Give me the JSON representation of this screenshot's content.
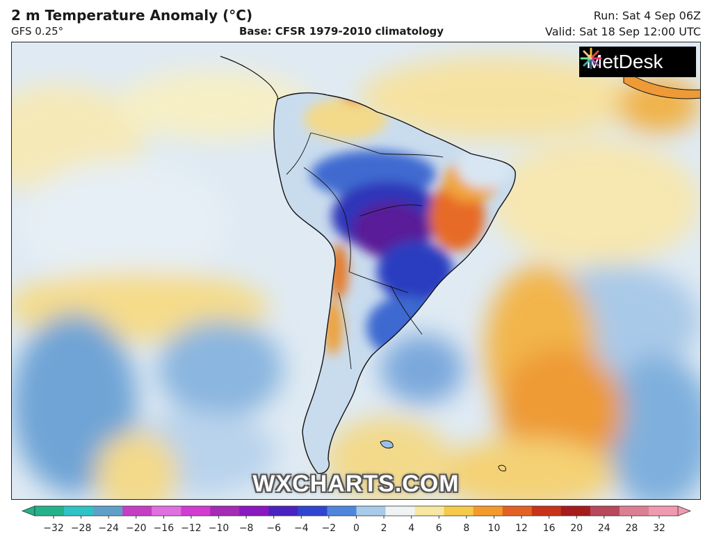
{
  "header": {
    "title": "2 m Temperature Anomaly (°C)",
    "model": "GFS 0.25°",
    "base": "Base: CFSR 1979-2010 climatology",
    "run": "Run: Sat 4 Sep 06Z",
    "valid": "Valid: Sat 18 Sep 12:00 UTC"
  },
  "logo": {
    "text": "MetDesk",
    "icon": "metdesk-starburst-icon"
  },
  "watermark": "WXCHARTS.COM",
  "colorbar": {
    "ticks": [
      "−32",
      "−28",
      "−24",
      "−20",
      "−16",
      "−12",
      "−10",
      "−8",
      "−6",
      "−4",
      "−2",
      "0",
      "2",
      "4",
      "6",
      "8",
      "10",
      "12",
      "16",
      "20",
      "24",
      "28",
      "32"
    ],
    "colors": [
      "#23b28a",
      "#2fc3c6",
      "#5fa0c8",
      "#c43fc4",
      "#e070e0",
      "#d23cd2",
      "#a52ab4",
      "#8a18c0",
      "#4a22c0",
      "#2f45cf",
      "#4f86dc",
      "#a7cbe8",
      "#f0f3f4",
      "#f8e7a2",
      "#f5c94a",
      "#f29b2c",
      "#e26226",
      "#c8331c",
      "#a51c1a",
      "#b8485c",
      "#dc7f93",
      "#ef9ab0"
    ]
  },
  "colors": {
    "very_cold": "#4a0f8a",
    "cold": "#1f3fc4",
    "cool": "#9cc1e6",
    "neutral": "#eef3f6",
    "warm": "#f7d680",
    "hot": "#ef8a2e",
    "very_hot": "#c8331c",
    "land_border": "#111111"
  }
}
